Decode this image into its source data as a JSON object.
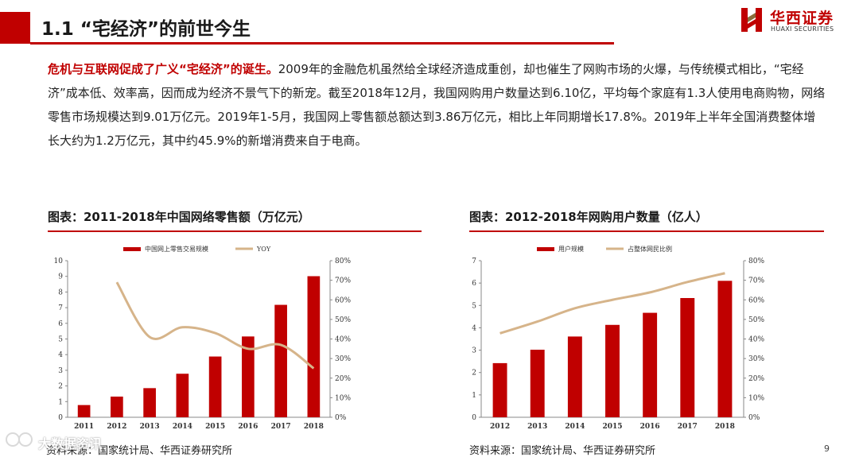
{
  "header": {
    "title": "1.1 “宅经济”的前世今生",
    "logo_cn": "华西证券",
    "logo_en": "HUAXI SECURITIES"
  },
  "paragraph": {
    "lead": "危机与互联网促成了广义“宅经济”的诞生。",
    "body": "2009年的金融危机虽然给全球经济造成重创，却也催生了网购市场的火爆，与传统模式相比，“宅经济”成本低、效率高，因而成为经济不景气下的新宠。截至2018年12月，我国网购用户数量达到6.10亿，平均每个家庭有1.3人使用电商购物，网络零售市场规模达到9.01万亿元。2019年1-5月，我国网上零售额总额达到3.86万亿元，相比上年同期增长17.8%。2019年上半年全国消费整体增长大约为1.2万亿元，其中约45.9%的新增消费来自于电商。"
  },
  "left_chart": {
    "heading": "图表：2011-2018年中国网络零售额（万亿元）",
    "source": "资料来源：国家统计局、华西证券研究所"
  },
  "right_chart": {
    "heading": "图表：2012-2018年网购用户数量（亿人）",
    "source": "资料来源：国家统计局、华西证券研究所"
  },
  "page_number": "9",
  "watermark": "大数据资讯",
  "colors": {
    "accent": "#c00000",
    "bar": "#c00000",
    "line": "#d6b48a"
  },
  "chart_data": [
    {
      "type": "bar",
      "categories": [
        "2011",
        "2012",
        "2013",
        "2014",
        "2015",
        "2016",
        "2017",
        "2018"
      ],
      "series": [
        {
          "name": "中国网上零售交易规模",
          "type": "bar",
          "axis": "left",
          "values": [
            0.78,
            1.32,
            1.86,
            2.78,
            3.88,
            5.16,
            7.18,
            9.01
          ]
        },
        {
          "name": "YOY",
          "type": "line",
          "axis": "right",
          "values": [
            null,
            69,
            41,
            46,
            43,
            35,
            37,
            25
          ]
        }
      ],
      "ylim_left": [
        0,
        10
      ],
      "yticks_left": [
        "0",
        "1",
        "2",
        "3",
        "4",
        "5",
        "6",
        "7",
        "8",
        "9",
        "10"
      ],
      "ylim_right": [
        0,
        80
      ],
      "yticks_right": [
        "0%",
        "10%",
        "20%",
        "30%",
        "40%",
        "50%",
        "60%",
        "70%",
        "80%"
      ],
      "legend": "top-center",
      "grid": false
    },
    {
      "type": "bar",
      "categories": [
        "2012",
        "2013",
        "2014",
        "2015",
        "2016",
        "2017",
        "2018"
      ],
      "series": [
        {
          "name": "用户规模",
          "type": "bar",
          "axis": "left",
          "values": [
            2.42,
            3.02,
            3.61,
            4.13,
            4.67,
            5.33,
            6.1
          ]
        },
        {
          "name": "占整体网民比例",
          "type": "line",
          "axis": "right",
          "values": [
            42.9,
            48.9,
            55.7,
            60,
            63.8,
            69.1,
            73.6
          ]
        }
      ],
      "ylim_left": [
        0,
        7
      ],
      "yticks_left": [
        "0",
        "1",
        "2",
        "3",
        "4",
        "5",
        "6",
        "7"
      ],
      "ylim_right": [
        0,
        80
      ],
      "yticks_right": [
        "0%",
        "10%",
        "20%",
        "30%",
        "40%",
        "50%",
        "60%",
        "70%",
        "80%"
      ],
      "legend": "top-center",
      "grid": false
    }
  ]
}
